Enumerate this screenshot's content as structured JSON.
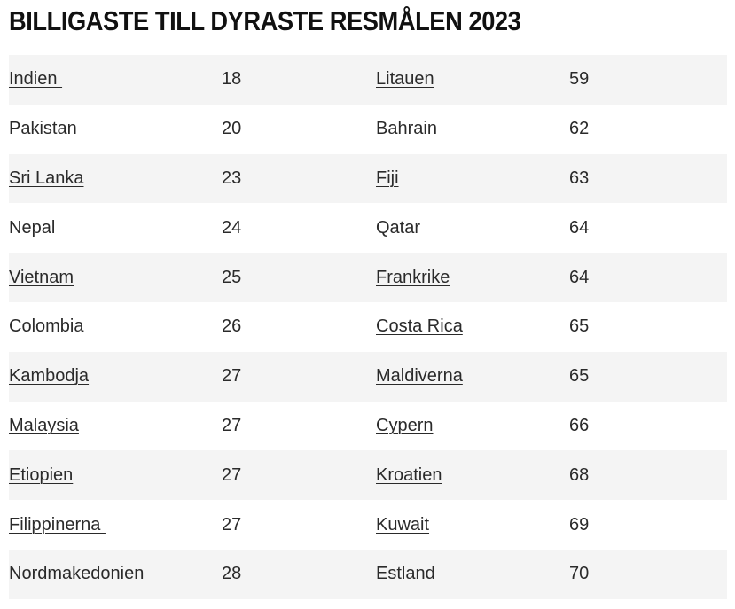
{
  "title": "BILLIGASTE TILL DYRASTE RESMÅLEN 2023",
  "rows": [
    {
      "left_name": "Indien ",
      "left_value": "18",
      "right_name": "Litauen",
      "right_value": "59"
    },
    {
      "left_name": "Pakistan",
      "left_value": "20",
      "right_name": "Bahrain",
      "right_value": "62"
    },
    {
      "left_name": "Sri Lanka",
      "left_value": "23",
      "right_name": "Fiji",
      "right_value": "63"
    },
    {
      "left_name": "Nepal",
      "left_value": "24",
      "right_name": "Qatar",
      "right_value": "64"
    },
    {
      "left_name": "Vietnam",
      "left_value": "25",
      "right_name": "Frankrike",
      "right_value": "64"
    },
    {
      "left_name": "Colombia",
      "left_value": "26",
      "right_name": "Costa Rica",
      "right_value": "65"
    },
    {
      "left_name": "Kambodja",
      "left_value": "27",
      "right_name": "Maldiverna",
      "right_value": "65"
    },
    {
      "left_name": "Malaysia",
      "left_value": "27",
      "right_name": "Cypern",
      "right_value": "66"
    },
    {
      "left_name": "Etiopien",
      "left_value": "27",
      "right_name": "Kroatien",
      "right_value": "68"
    },
    {
      "left_name": "Filippinerna ",
      "left_value": "27",
      "right_name": "Kuwait",
      "right_value": "69"
    },
    {
      "left_name": "Nordmakedonien",
      "left_value": "28",
      "right_name": "Estland",
      "right_value": "70"
    }
  ]
}
